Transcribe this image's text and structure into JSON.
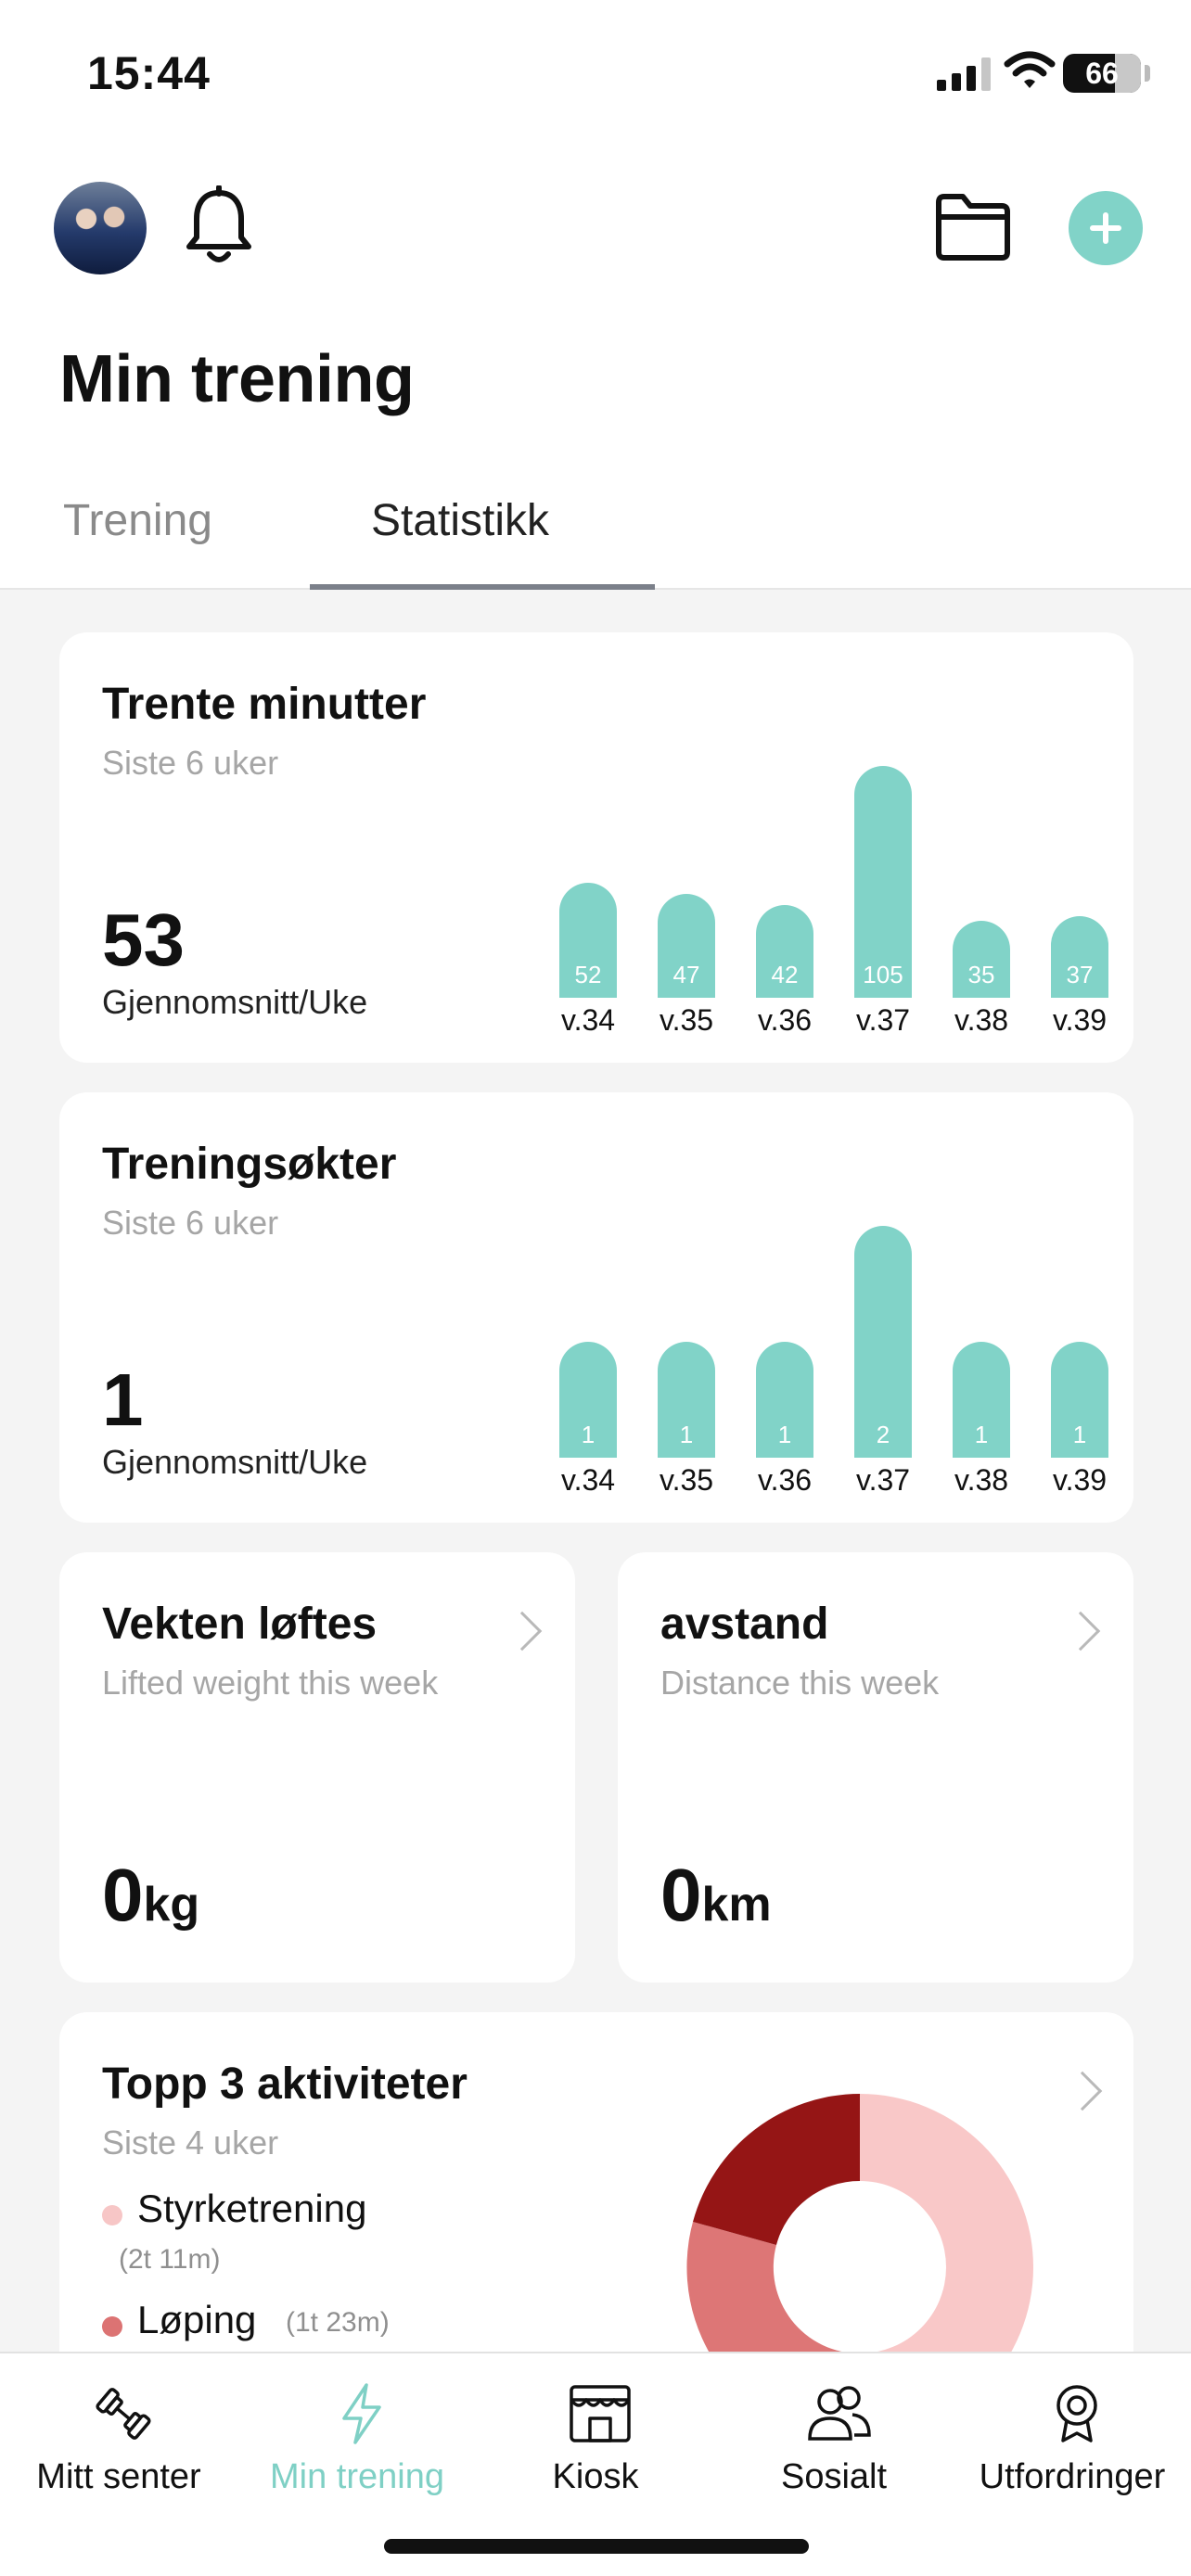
{
  "status_bar": {
    "time": "15:44",
    "battery": "66"
  },
  "header": {
    "title": "Min trening"
  },
  "tabs": [
    {
      "label": "Trening",
      "active": false
    },
    {
      "label": "Statistikk",
      "active": true
    }
  ],
  "minutes_card": {
    "title": "Trente minutter",
    "subtitle": "Siste 6 uker",
    "average": "53",
    "average_label": "Gjennomsnitt/Uke",
    "chart_data": {
      "type": "bar",
      "categories": [
        "v.34",
        "v.35",
        "v.36",
        "v.37",
        "v.38",
        "v.39"
      ],
      "values": [
        52,
        47,
        42,
        105,
        35,
        37
      ]
    }
  },
  "sessions_card": {
    "title": "Treningsøkter",
    "subtitle": "Siste 6 uker",
    "average": "1",
    "average_label": "Gjennomsnitt/Uke",
    "chart_data": {
      "type": "bar",
      "categories": [
        "v.34",
        "v.35",
        "v.36",
        "v.37",
        "v.38",
        "v.39"
      ],
      "values": [
        1,
        1,
        1,
        2,
        1,
        1
      ]
    }
  },
  "weight_card": {
    "title": "Vekten løftes",
    "subtitle": "Lifted weight this week",
    "value": "0",
    "unit": "kg"
  },
  "distance_card": {
    "title": "avstand",
    "subtitle": "Distance this week",
    "value": "0",
    "unit": "km"
  },
  "top3_card": {
    "title": "Topp 3 aktiviteter",
    "subtitle": "Siste 4 uker",
    "activities": [
      {
        "name": "Styrketrening",
        "duration": "(2t 11m)",
        "color": "#f7c6c6"
      },
      {
        "name": "Løping",
        "duration": "(1t 23m)",
        "color": "#dc7373"
      }
    ],
    "donut_colors": [
      "#f9c8c8",
      "#dd7676",
      "#951515"
    ]
  },
  "bottom_nav": [
    {
      "label": "Mitt senter",
      "icon": "dumbbell-icon",
      "active": false
    },
    {
      "label": "Min trening",
      "icon": "lightning-icon",
      "active": true
    },
    {
      "label": "Kiosk",
      "icon": "store-icon",
      "active": false
    },
    {
      "label": "Sosialt",
      "icon": "people-icon",
      "active": false
    },
    {
      "label": "Utfordringer",
      "icon": "medal-icon",
      "active": false
    }
  ],
  "colors": {
    "accent": "#81d3c8",
    "active_nav": "#7fd0c5"
  }
}
